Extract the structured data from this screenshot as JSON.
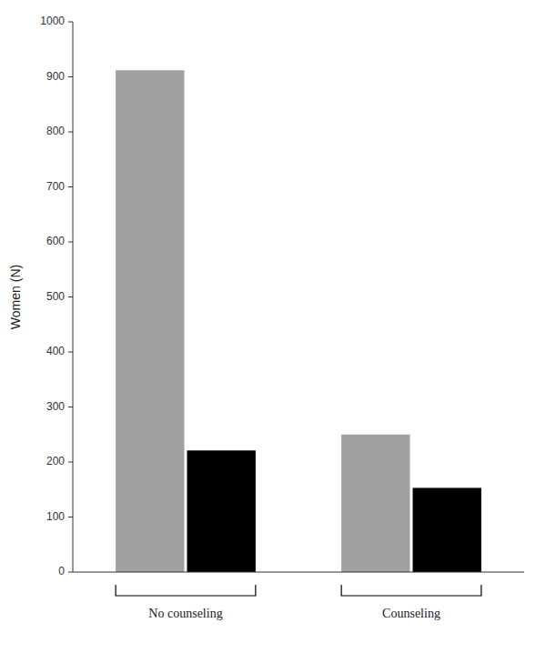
{
  "chart_data": {
    "type": "bar",
    "categories": [
      "No counseling",
      "Counseling"
    ],
    "series": [
      {
        "color": "#a0a0a0",
        "values": [
          912,
          250
        ]
      },
      {
        "color": "#000000",
        "values": [
          221,
          153
        ]
      }
    ],
    "ylabel": "Women (N)",
    "ylim": [
      0,
      1000
    ],
    "yticks": [
      0,
      100,
      200,
      300,
      400,
      500,
      600,
      700,
      800,
      900,
      1000
    ],
    "grid": false
  }
}
